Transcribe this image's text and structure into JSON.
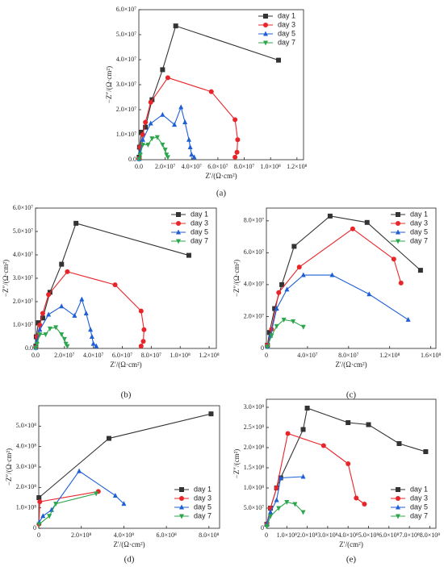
{
  "chart_data": [
    {
      "type": "line",
      "panel_label": "(a)",
      "xlabel": "Z′/(Ω·cm²)",
      "ylabel": "−Z″/(Ω·cm²)",
      "legend": "upper right",
      "xlim": [
        0,
        125000000
      ],
      "ylim": [
        0,
        60000000
      ],
      "xticks": [
        {
          "value": 0,
          "label": "0.0"
        },
        {
          "value": 20000000,
          "label": "2.0×10⁷"
        },
        {
          "value": 40000000,
          "label": "4.0×10⁷"
        },
        {
          "value": 60000000,
          "label": "6.0×10⁷"
        },
        {
          "value": 80000000,
          "label": "8.0×10⁷"
        },
        {
          "value": 100000000,
          "label": "1.0×10⁸"
        },
        {
          "value": 120000000,
          "label": "1.2×10⁸"
        }
      ],
      "yticks": [
        {
          "value": 0,
          "label": "0.0"
        },
        {
          "value": 10000000,
          "label": "1.0×10⁷"
        },
        {
          "value": 20000000,
          "label": "2.0×10⁷"
        },
        {
          "value": 30000000,
          "label": "3.0×10⁷"
        },
        {
          "value": 40000000,
          "label": "4.0×10⁷"
        },
        {
          "value": 50000000,
          "label": "5.0×10⁷"
        },
        {
          "value": 60000000,
          "label": "6.0×10⁷"
        }
      ],
      "series": [
        {
          "name": "day 1",
          "color": "#333333",
          "marker": "square",
          "x": [
            200000,
            500000,
            2000000,
            5000000,
            10000000,
            18000000,
            28000000,
            106000000
          ],
          "values": [
            1000000,
            5000000,
            11000000,
            13000000,
            24000000,
            36000000,
            53500000,
            39800000
          ]
        },
        {
          "name": "day 3",
          "color": "#e8262a",
          "marker": "circle",
          "x": [
            200000,
            1000000,
            3000000,
            5000000,
            9000000,
            22000000,
            55000000,
            73000000,
            75000000,
            74500000,
            73000000
          ],
          "values": [
            500000,
            5000000,
            10000000,
            15000000,
            23000000,
            32800000,
            27200000,
            16000000,
            8000000,
            3000000,
            1000000
          ]
        },
        {
          "name": "day 5",
          "color": "#1f5fd6",
          "marker": "triangle-up",
          "x": [
            200000,
            1000000,
            3000000,
            9000000,
            18000000,
            27000000,
            32000000,
            35000000,
            38000000,
            39000000,
            40000000,
            42000000
          ],
          "values": [
            300000,
            3000000,
            8000000,
            14500000,
            18000000,
            14000000,
            21000000,
            15000000,
            8000000,
            5000000,
            2000000,
            1000000
          ]
        },
        {
          "name": "day 7",
          "color": "#2ca64c",
          "marker": "triangle-down",
          "x": [
            200000,
            1000000,
            3000000,
            7000000,
            10000000,
            14000000,
            18000000,
            20000000,
            21000000,
            22000000
          ],
          "values": [
            200000,
            2000000,
            6000000,
            6000000,
            8500000,
            9000000,
            6000000,
            4000000,
            2000000,
            1000000
          ]
        }
      ]
    },
    {
      "type": "line",
      "panel_label": "(b)",
      "xlabel": "Z′/(Ω·cm²)",
      "ylabel": "−Z″/(Ω·cm²)",
      "legend": "upper right",
      "xlim": [
        0,
        125000000
      ],
      "ylim": [
        0,
        60000000
      ],
      "xticks": [
        {
          "value": 0,
          "label": "0.0"
        },
        {
          "value": 20000000,
          "label": "2.0×10⁷"
        },
        {
          "value": 40000000,
          "label": "4.0×10⁷"
        },
        {
          "value": 60000000,
          "label": "6.0×10⁷"
        },
        {
          "value": 80000000,
          "label": "8.0×10⁷"
        },
        {
          "value": 100000000,
          "label": "1.0×10⁸"
        },
        {
          "value": 120000000,
          "label": "1.2×10⁸"
        }
      ],
      "yticks": [
        {
          "value": 0,
          "label": "0.0"
        },
        {
          "value": 10000000,
          "label": "1.0×10⁷"
        },
        {
          "value": 20000000,
          "label": "2.0×10⁷"
        },
        {
          "value": 30000000,
          "label": "3.0×10⁷"
        },
        {
          "value": 40000000,
          "label": "4.0×10⁷"
        },
        {
          "value": 50000000,
          "label": "5.0×10⁷"
        },
        {
          "value": 60000000,
          "label": "6.0×10⁷"
        }
      ],
      "series": [
        {
          "name": "day 1",
          "color": "#333333",
          "marker": "square",
          "x": [
            200000,
            500000,
            2000000,
            5000000,
            10000000,
            18000000,
            28000000,
            106000000
          ],
          "values": [
            1000000,
            5000000,
            11000000,
            13000000,
            24000000,
            36000000,
            53500000,
            39800000
          ]
        },
        {
          "name": "day 3",
          "color": "#e8262a",
          "marker": "circle",
          "x": [
            200000,
            1000000,
            3000000,
            5000000,
            9000000,
            22000000,
            55000000,
            73000000,
            75000000,
            74500000,
            73000000
          ],
          "values": [
            500000,
            5000000,
            10000000,
            15000000,
            23000000,
            32800000,
            27200000,
            16000000,
            8000000,
            3000000,
            1000000
          ]
        },
        {
          "name": "day 5",
          "color": "#1f5fd6",
          "marker": "triangle-up",
          "x": [
            200000,
            1000000,
            3000000,
            9000000,
            18000000,
            27000000,
            32000000,
            35000000,
            38000000,
            39000000,
            40000000,
            42000000
          ],
          "values": [
            300000,
            3000000,
            8000000,
            14500000,
            18000000,
            14000000,
            21000000,
            15000000,
            8000000,
            5000000,
            2000000,
            1000000
          ]
        },
        {
          "name": "day 7",
          "color": "#2ca64c",
          "marker": "triangle-down",
          "x": [
            200000,
            1000000,
            3000000,
            7000000,
            10000000,
            14000000,
            18000000,
            20000000,
            21000000,
            22000000
          ],
          "values": [
            200000,
            2000000,
            6000000,
            6000000,
            8500000,
            9000000,
            6000000,
            4000000,
            2000000,
            1000000
          ]
        }
      ]
    },
    {
      "type": "line",
      "panel_label": "(c)",
      "xlabel": "Z′/(Ω·cm²)",
      "ylabel": "−Z″/(Ω·cm²)",
      "legend": "upper right",
      "xlim": [
        0,
        165000000
      ],
      "ylim": [
        0,
        88000000
      ],
      "xticks": [
        0,
        {
          "value": 40000000,
          "label": "4.0×10⁷"
        },
        {
          "value": 80000000,
          "label": "8.0×10⁷"
        },
        {
          "value": 120000000,
          "label": "1.2×10⁸"
        },
        {
          "value": 160000000,
          "label": "1.6×10⁸"
        }
      ],
      "yticks": [
        0,
        {
          "value": 20000000,
          "label": "2.0×10⁷"
        },
        {
          "value": 40000000,
          "label": "4.0×10⁷"
        },
        {
          "value": 60000000,
          "label": "6.0×10⁷"
        },
        {
          "value": 80000000,
          "label": "8.0×10⁷"
        }
      ],
      "series": [
        {
          "name": "day 1",
          "color": "#333333",
          "marker": "square",
          "x": [
            1000000,
            3000000,
            8000000,
            15000000,
            27000000,
            62000000,
            98000000,
            150000000
          ],
          "values": [
            2000000,
            10000000,
            25000000,
            40000000,
            64000000,
            83000000,
            79000000,
            49000000
          ]
        },
        {
          "name": "day 3",
          "color": "#e8262a",
          "marker": "circle",
          "x": [
            1000000,
            5000000,
            12000000,
            32000000,
            84000000,
            124000000,
            131000000
          ],
          "values": [
            2000000,
            12000000,
            35000000,
            51000000,
            75000000,
            56000000,
            41000000
          ]
        },
        {
          "name": "day 5",
          "color": "#1f5fd6",
          "marker": "triangle-up",
          "x": [
            1000000,
            4000000,
            10000000,
            20000000,
            36000000,
            64000000,
            100000000,
            138000000
          ],
          "values": [
            1000000,
            8000000,
            25000000,
            37000000,
            46000000,
            46000000,
            34000000,
            18000000
          ]
        },
        {
          "name": "day 7",
          "color": "#2ca64c",
          "marker": "triangle-down",
          "x": [
            1000000,
            5000000,
            10000000,
            17000000,
            26000000,
            36000000
          ],
          "values": [
            1000000,
            8000000,
            14000000,
            18000000,
            17000000,
            13500000
          ]
        }
      ]
    },
    {
      "type": "line",
      "panel_label": "(d)",
      "xlabel": "Z′/(Ω·cm²)",
      "ylabel": "−Z″/(Ω·cm²)",
      "legend": "lower right",
      "xlim": [
        0,
        850000000
      ],
      "ylim": [
        0,
        600000000
      ],
      "xticks": [
        0,
        {
          "value": 200000000,
          "label": "2.0×10⁸"
        },
        {
          "value": 400000000,
          "label": "4.0×10⁸"
        },
        {
          "value": 600000000,
          "label": "6.0×10⁸"
        },
        {
          "value": 800000000,
          "label": "8.0×10⁸"
        }
      ],
      "yticks": [
        0,
        {
          "value": 100000000,
          "label": "1.0×10⁸"
        },
        {
          "value": 200000000,
          "label": "2.0×10⁸"
        },
        {
          "value": 300000000,
          "label": "3.0×10⁸"
        },
        {
          "value": 400000000,
          "label": "4.0×10⁸"
        },
        {
          "value": 500000000,
          "label": "5.0×10⁸"
        }
      ],
      "series": [
        {
          "name": "day 1",
          "color": "#333333",
          "marker": "square",
          "x": [
            1000000,
            330000000,
            810000000
          ],
          "values": [
            150000000,
            440000000,
            560000000
          ]
        },
        {
          "name": "day 3",
          "color": "#e8262a",
          "marker": "circle",
          "x": [
            1000000,
            5000000,
            280000000
          ],
          "values": [
            20000000,
            130000000,
            180000000
          ]
        },
        {
          "name": "day 5",
          "color": "#1f5fd6",
          "marker": "triangle-up",
          "x": [
            2000000,
            20000000,
            60000000,
            190000000,
            360000000,
            400000000
          ],
          "values": [
            30000000,
            60000000,
            90000000,
            280000000,
            160000000,
            120000000
          ]
        },
        {
          "name": "day 7",
          "color": "#2ca64c",
          "marker": "triangle-down",
          "x": [
            2000000,
            50000000,
            80000000,
            270000000
          ],
          "values": [
            20000000,
            60000000,
            120000000,
            170000000
          ]
        }
      ]
    },
    {
      "type": "line",
      "panel_label": "(e)",
      "xlabel": "Z′/(cm²)",
      "ylabel": "−Z″/(cm²)",
      "legend": "lower right",
      "xlim": [
        0,
        830000000
      ],
      "ylim": [
        0,
        320000000
      ],
      "xticks": [
        0,
        {
          "value": 100000000,
          "label": "1.0×10⁸"
        },
        {
          "value": 200000000,
          "label": "2.0×10⁸"
        },
        {
          "value": 300000000,
          "label": "3.0×10⁸"
        },
        {
          "value": 400000000,
          "label": "4.0×10⁸"
        },
        {
          "value": 500000000,
          "label": "5.0×10⁸"
        },
        {
          "value": 600000000,
          "label": "6.0×10⁸"
        },
        {
          "value": 700000000,
          "label": "7.0×10⁸"
        },
        {
          "value": 800000000,
          "label": "8.0×10⁸"
        }
      ],
      "yticks": [
        0,
        {
          "value": 50000000,
          "label": "5.0×10⁷"
        },
        {
          "value": 100000000,
          "label": "1.0×10⁸"
        },
        {
          "value": 150000000,
          "label": "1.5×10⁸"
        },
        {
          "value": 200000000,
          "label": "2.0×10⁸"
        },
        {
          "value": 250000000,
          "label": "2.5×10⁸"
        },
        {
          "value": 300000000,
          "label": "3.0×10⁸"
        }
      ],
      "series": [
        {
          "name": "day 1",
          "color": "#333333",
          "marker": "square",
          "x": [
            2000000,
            20000000,
            50000000,
            70000000,
            180000000,
            200000000,
            400000000,
            500000000,
            650000000,
            780000000
          ],
          "values": [
            10000000,
            50000000,
            100000000,
            125000000,
            245000000,
            298000000,
            262000000,
            257000000,
            210000000,
            190000000
          ]
        },
        {
          "name": "day 3",
          "color": "#e8262a",
          "marker": "circle",
          "x": [
            2000000,
            20000000,
            50000000,
            105000000,
            280000000,
            400000000,
            440000000,
            480000000
          ],
          "values": [
            10000000,
            50000000,
            100000000,
            235000000,
            205000000,
            160000000,
            75000000,
            60000000
          ]
        },
        {
          "name": "day 5",
          "color": "#1f5fd6",
          "marker": "triangle-up",
          "x": [
            2000000,
            20000000,
            50000000,
            70000000,
            180000000
          ],
          "values": [
            10000000,
            40000000,
            70000000,
            125000000,
            128000000
          ]
        },
        {
          "name": "day 7",
          "color": "#2ca64c",
          "marker": "triangle-down",
          "x": [
            2000000,
            20000000,
            60000000,
            100000000,
            140000000,
            180000000
          ],
          "values": [
            5000000,
            30000000,
            50000000,
            65000000,
            60000000,
            40000000
          ]
        }
      ]
    }
  ]
}
